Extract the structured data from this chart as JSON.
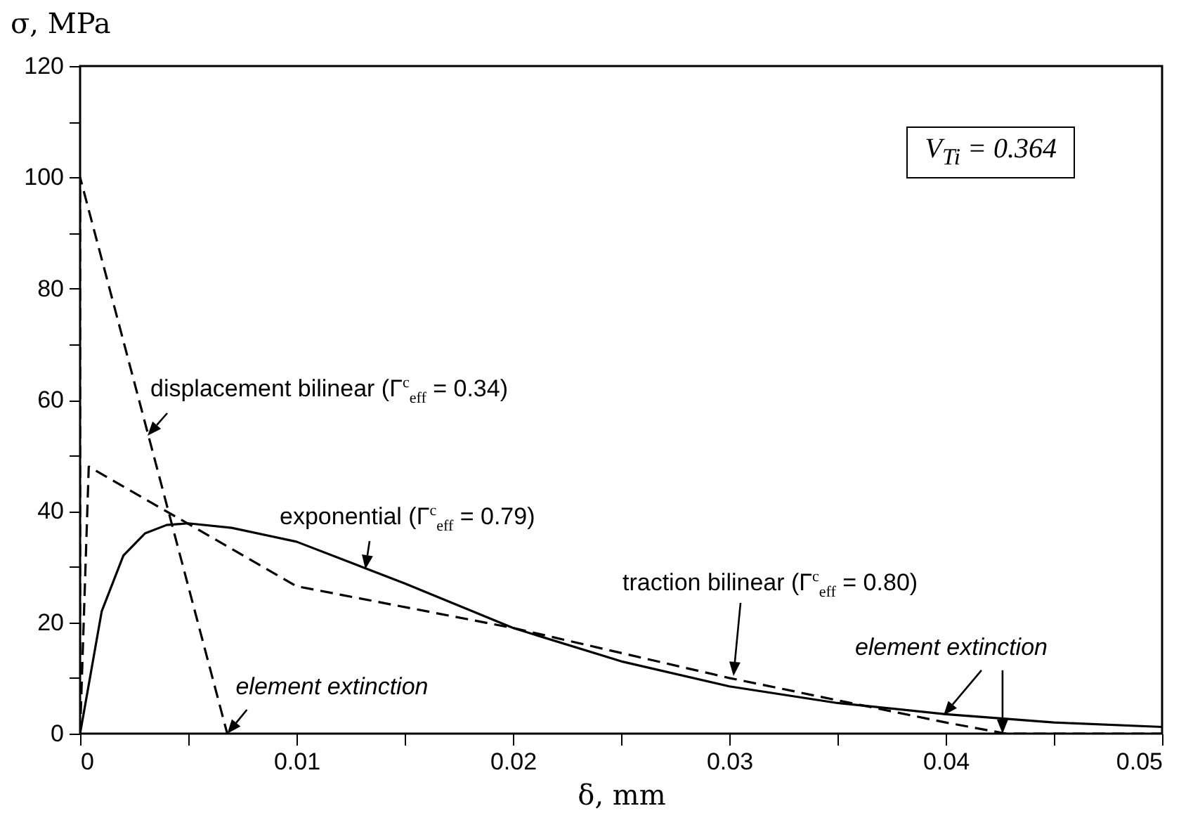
{
  "chart_data": {
    "type": "line",
    "xlabel": "δ, mm",
    "ylabel": "σ, MPa",
    "xlim": [
      0,
      0.05
    ],
    "ylim": [
      0,
      120
    ],
    "xticks": [
      0,
      {
        "value": 0.005,
        "label": null
      },
      0.01,
      {
        "value": 0.015,
        "label": null
      },
      0.02,
      {
        "value": 0.025,
        "label": null
      },
      0.03,
      {
        "value": 0.035,
        "label": null
      },
      0.04,
      {
        "value": 0.045,
        "label": null
      },
      0.05
    ],
    "yticks": [
      0,
      {
        "value": 10,
        "label": null
      },
      20,
      {
        "value": 30,
        "label": null
      },
      40,
      {
        "value": 50,
        "label": null
      },
      60,
      {
        "value": 70,
        "label": null
      },
      80,
      {
        "value": 90,
        "label": null
      },
      100,
      {
        "value": 110,
        "label": null
      },
      120
    ],
    "grid": false,
    "legend": false,
    "marker": "none",
    "series": [
      {
        "name": "displacement bilinear (Γ$^{c}$$_{eff}$ = 0.34)",
        "color": "#000000",
        "line_style": "dashed",
        "x": [
          0,
          0,
          0.0068
        ],
        "values": [
          0,
          100,
          0
        ]
      },
      {
        "name": "exponential (Γ$^{c}$$_{eff}$ = 0.79)",
        "color": "#000000",
        "line_style": "solid",
        "x": [
          0,
          0.001,
          0.002,
          0.003,
          0.004,
          0.005,
          0.007,
          0.01,
          0.013,
          0.015,
          0.02,
          0.025,
          0.03,
          0.035,
          0.04,
          0.045,
          0.05
        ],
        "values": [
          0,
          22,
          32,
          36,
          37.5,
          37.8,
          37,
          34.5,
          30,
          27,
          19,
          13,
          8.5,
          5.5,
          3.5,
          2,
          1.2
        ]
      },
      {
        "name": "traction bilinear (Γ$^{c}$$_{eff}$ = 0.80)",
        "color": "#000000",
        "line_style": "dashed",
        "x": [
          0,
          0.0004,
          0.01,
          0.02,
          0.03,
          0.04,
          0.0428,
          0.05
        ],
        "values": [
          0,
          48,
          26.5,
          19,
          10,
          2,
          0,
          0
        ]
      }
    ],
    "annotations": [
      "V$_{Ti}$ = 0.364",
      {
        "text": "element extinction",
        "x": 0.0068,
        "y": 0
      },
      {
        "text": "element extinction",
        "x": 0.0399,
        "y": 3.3
      }
    ]
  }
}
